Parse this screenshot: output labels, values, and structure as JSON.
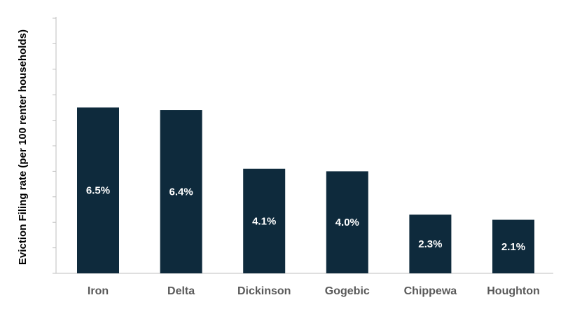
{
  "chart_data": {
    "type": "bar",
    "title": "",
    "xlabel": "",
    "ylabel": "Eviction Filing rate (per 100 renter households)",
    "categories": [
      "Iron",
      "Delta",
      "Dickinson",
      "Gogebic",
      "Chippewa",
      "Houghton"
    ],
    "values": [
      6.5,
      6.4,
      4.1,
      4.0,
      2.3,
      2.1
    ],
    "data_labels": [
      "6.5%",
      "6.4%",
      "4.1%",
      "4.0%",
      "2.3%",
      "2.1%"
    ],
    "ylim": [
      0,
      10
    ],
    "y_tick_labels_shown": false,
    "grid": false,
    "legend": "none",
    "bar_color": "#0e2a3c",
    "axis_color": "#bfbfbf",
    "tick_label_color": "#595959",
    "data_label_color": "#ffffff"
  }
}
